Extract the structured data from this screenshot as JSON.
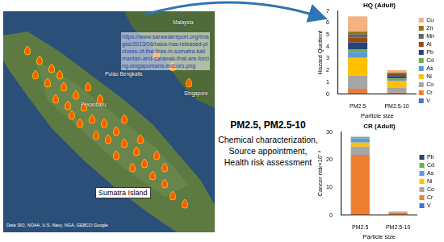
{
  "map": {
    "url_text": "https://www.sarawakreport.org/Images/2013/06/nasa-has-released-pictures-of-the-fires-in-sumatra-kalimantan-and-sarawak-that-are-forcing-singaporeans-indoors.png",
    "island_label": "Sumatra Island",
    "place_labels": [
      "Malaysia",
      "Singapore",
      "Pulau Bengkalis",
      "Pekanbaru"
    ],
    "attribution": "Data SIO, NOAA, U.S. Navy, NGA, GEBCO  Google"
  },
  "text": {
    "heading": "PM2.5, PM2.5-10",
    "lines": [
      "Chemical characterization,",
      "Source appointment,",
      "Health risk assessment"
    ]
  },
  "chart_data": [
    {
      "type": "bar",
      "stacked": true,
      "title": "HQ (Adult)",
      "x_label": "Particle size",
      "y_label": "Hazard Quotient",
      "categories": [
        "PM2.5",
        "PM2.5-10"
      ],
      "ylim": [
        0,
        7
      ],
      "yticks": [
        0,
        1,
        2,
        3,
        4,
        5,
        6,
        7
      ],
      "legend": "right",
      "series": [
        {
          "name": "V",
          "color": "#4472c4",
          "values": [
            0.05,
            0.02
          ]
        },
        {
          "name": "Cr",
          "color": "#ed7d31",
          "values": [
            0.4,
            0.1
          ]
        },
        {
          "name": "Co",
          "color": "#a5a5a5",
          "values": [
            1.1,
            0.4
          ]
        },
        {
          "name": "Ni",
          "color": "#ffc000",
          "values": [
            1.5,
            0.6
          ]
        },
        {
          "name": "As",
          "color": "#5b9bd5",
          "values": [
            0.5,
            0.15
          ]
        },
        {
          "name": "Cd",
          "color": "#70ad47",
          "values": [
            0.2,
            0.05
          ]
        },
        {
          "name": "Pb",
          "color": "#264478",
          "values": [
            0.6,
            0.2
          ]
        },
        {
          "name": "Al",
          "color": "#9e480e",
          "values": [
            0.4,
            0.15
          ]
        },
        {
          "name": "Mn",
          "color": "#636363",
          "values": [
            0.3,
            0.1
          ]
        },
        {
          "name": "Zn",
          "color": "#997300",
          "values": [
            0.2,
            0.05
          ]
        },
        {
          "name": "Cu",
          "color": "#f4b183",
          "values": [
            1.3,
            0.2
          ]
        }
      ]
    },
    {
      "type": "bar",
      "stacked": true,
      "title": "CR (Adult)",
      "x_label": "Particle size",
      "y_label": "Cancer risk×10⁻⁴",
      "categories": [
        "PM2.5",
        "PM2.5-10"
      ],
      "ylim": [
        0,
        30
      ],
      "yticks": [
        0,
        10,
        20,
        30
      ],
      "legend": "right",
      "series": [
        {
          "name": "V",
          "color": "#4472c4",
          "values": [
            0.2,
            0.05
          ]
        },
        {
          "name": "Cr",
          "color": "#ed7d31",
          "values": [
            21.5,
            0.8
          ]
        },
        {
          "name": "Co",
          "color": "#a5a5a5",
          "values": [
            3,
            0.2
          ]
        },
        {
          "name": "Ni",
          "color": "#ffc000",
          "values": [
            1.5,
            0.1
          ]
        },
        {
          "name": "As",
          "color": "#5b9bd5",
          "values": [
            1.5,
            0.1
          ]
        },
        {
          "name": "Cd",
          "color": "#70ad47",
          "values": [
            0.3,
            0.02
          ]
        },
        {
          "name": "Pb",
          "color": "#264478",
          "values": [
            0.2,
            0.01
          ]
        }
      ]
    }
  ]
}
